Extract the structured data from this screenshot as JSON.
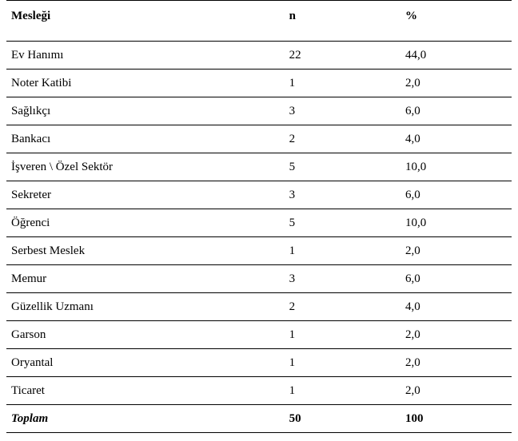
{
  "table": {
    "columns": [
      "Mesleği",
      "n",
      "%"
    ],
    "rows": [
      [
        "Ev Hanımı",
        "22",
        "44,0"
      ],
      [
        "Noter Katibi",
        "1",
        "2,0"
      ],
      [
        "Sağlıkçı",
        "3",
        "6,0"
      ],
      [
        "Bankacı",
        "2",
        "4,0"
      ],
      [
        "İşveren \\ Özel Sektör",
        "5",
        "10,0"
      ],
      [
        "Sekreter",
        "3",
        "6,0"
      ],
      [
        "Öğrenci",
        "5",
        "10,0"
      ],
      [
        "Serbest Meslek",
        "1",
        "2,0"
      ],
      [
        "Memur",
        "3",
        "6,0"
      ],
      [
        "Güzellik Uzmanı",
        "2",
        "4,0"
      ],
      [
        "Garson",
        "1",
        "2,0"
      ],
      [
        "Oryantal",
        "1",
        "2,0"
      ],
      [
        "Ticaret",
        "1",
        "2,0"
      ]
    ],
    "footer": [
      "Toplam",
      "50",
      "100"
    ]
  }
}
